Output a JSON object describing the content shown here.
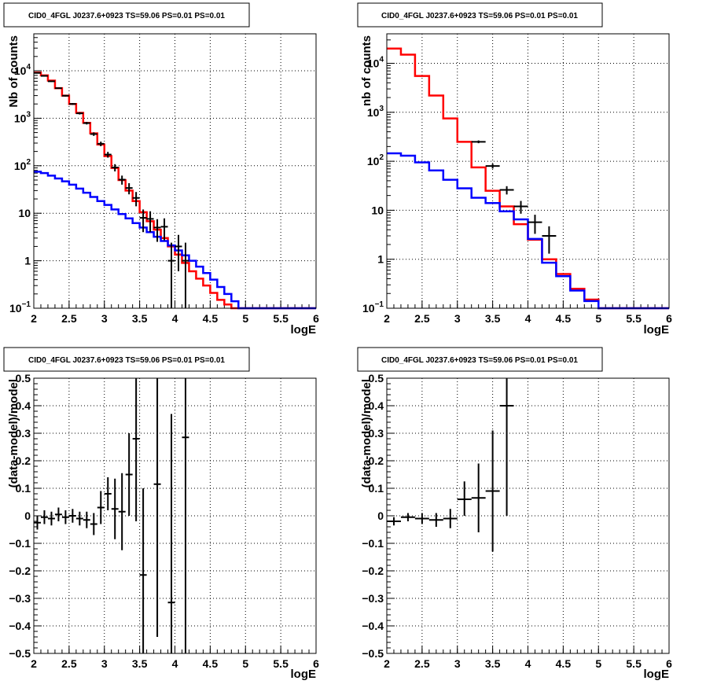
{
  "chart_data": [
    {
      "type": "line",
      "title": "CID0_4FGL J0237.6+0923 TS=59.06 PS=0.01 PS=0.01",
      "xlabel": "logE",
      "ylabel": "Nb of counts",
      "xlim": [
        2,
        6
      ],
      "ylim": [
        0.1,
        60000
      ],
      "yscale": "log",
      "grid": true,
      "xticks": [
        "2",
        "2.5",
        "3",
        "3.5",
        "4",
        "4.5",
        "5",
        "5.5",
        "6"
      ],
      "yticks": [
        {
          "v": 0.1,
          "mant": "10",
          "exp": "−1"
        },
        {
          "v": 1,
          "mant": "1",
          "exp": ""
        },
        {
          "v": 10,
          "mant": "10",
          "exp": ""
        },
        {
          "v": 100,
          "mant": "10",
          "exp": "2"
        },
        {
          "v": 1000,
          "mant": "10",
          "exp": "3"
        },
        {
          "v": 10000,
          "mant": "10",
          "exp": "4"
        }
      ],
      "bin_edges": [
        2.0,
        2.1,
        2.2,
        2.3,
        2.4,
        2.5,
        2.6,
        2.7,
        2.8,
        2.9,
        3.0,
        3.1,
        3.2,
        3.3,
        3.4,
        3.5,
        3.6,
        3.7,
        3.8,
        3.9,
        4.0,
        4.1,
        4.2,
        4.3,
        4.4,
        4.5,
        4.6,
        4.7,
        4.8,
        4.9,
        5.0,
        5.1,
        5.2,
        5.3,
        5.4,
        5.5,
        5.6,
        5.7,
        5.8,
        5.9,
        6.0
      ],
      "series": [
        {
          "color": "#ff0000",
          "values": [
            9200,
            8000,
            6200,
            4300,
            3000,
            2000,
            1300,
            800,
            480,
            280,
            160,
            90,
            50,
            30,
            18,
            10.5,
            6.8,
            4.5,
            3.0,
            2.0,
            1.35,
            0.9,
            0.6,
            0.42,
            0.3,
            0.21,
            0.15,
            0.12,
            0.1,
            0.1,
            0.1,
            0.1,
            0.1,
            0.1,
            0.1,
            0.1,
            0.1,
            0.1,
            0.1,
            0.1
          ]
        },
        {
          "color": "#0000ff",
          "values": [
            75,
            70,
            62,
            54,
            47,
            40,
            33,
            27,
            22,
            18,
            15,
            12,
            9.6,
            7.8,
            6.2,
            5.0,
            4.0,
            3.2,
            2.6,
            2.1,
            1.65,
            1.3,
            1.0,
            0.75,
            0.55,
            0.4,
            0.28,
            0.2,
            0.14,
            0.1,
            0.1,
            0.1,
            0.1,
            0.1,
            0.1,
            0.1,
            0.1,
            0.1,
            0.1,
            0.1
          ]
        }
      ],
      "points": [
        {
          "x": 2.05,
          "y": 9000,
          "ylo": 8800,
          "yhi": 9200
        },
        {
          "x": 2.15,
          "y": 7800,
          "ylo": 7600,
          "yhi": 8000
        },
        {
          "x": 2.25,
          "y": 6000,
          "ylo": 5850,
          "yhi": 6150
        },
        {
          "x": 2.35,
          "y": 4300,
          "ylo": 4170,
          "yhi": 4430
        },
        {
          "x": 2.45,
          "y": 2980,
          "ylo": 2870,
          "yhi": 3090
        },
        {
          "x": 2.55,
          "y": 2000,
          "ylo": 1910,
          "yhi": 2090
        },
        {
          "x": 2.65,
          "y": 1270,
          "ylo": 1200,
          "yhi": 1340
        },
        {
          "x": 2.75,
          "y": 790,
          "ylo": 740,
          "yhi": 840
        },
        {
          "x": 2.85,
          "y": 465,
          "ylo": 425,
          "yhi": 505
        },
        {
          "x": 2.95,
          "y": 290,
          "ylo": 258,
          "yhi": 322
        },
        {
          "x": 3.05,
          "y": 172,
          "ylo": 148,
          "yhi": 196
        },
        {
          "x": 3.15,
          "y": 92,
          "ylo": 76,
          "yhi": 108
        },
        {
          "x": 3.25,
          "y": 51,
          "ylo": 40,
          "yhi": 62
        },
        {
          "x": 3.35,
          "y": 34,
          "ylo": 25,
          "yhi": 43
        },
        {
          "x": 3.45,
          "y": 21,
          "ylo": 14,
          "yhi": 28
        },
        {
          "x": 3.55,
          "y": 8,
          "ylo": 4,
          "yhi": 12
        },
        {
          "x": 3.65,
          "y": 7.6,
          "ylo": 4,
          "yhi": 11
        },
        {
          "x": 3.75,
          "y": 5,
          "ylo": 2.5,
          "yhi": 7.5
        },
        {
          "x": 3.85,
          "y": 5.2,
          "ylo": 2.7,
          "yhi": 7.8
        },
        {
          "x": 3.95,
          "y": 1,
          "ylo": 0.1,
          "yhi": 2.4
        },
        {
          "x": 4.05,
          "y": 2,
          "ylo": 0.6,
          "yhi": 3.5
        },
        {
          "x": 4.15,
          "y": 1,
          "ylo": 0.1,
          "yhi": 2.4
        }
      ],
      "point_halfwidth": 0.05
    },
    {
      "type": "line",
      "title": "CID0_4FGL J0237.6+0923 TS=59.06 PS=0.01 PS=0.01",
      "xlabel": "logE",
      "ylabel": "nb of counts",
      "xlim": [
        2,
        6
      ],
      "ylim": [
        0.1,
        40000
      ],
      "yscale": "log",
      "grid": true,
      "xticks": [
        "2",
        "2.5",
        "3",
        "3.5",
        "4",
        "4.5",
        "5",
        "5.5",
        "6"
      ],
      "yticks": [
        {
          "v": 0.1,
          "mant": "10",
          "exp": "−1"
        },
        {
          "v": 1,
          "mant": "1",
          "exp": ""
        },
        {
          "v": 10,
          "mant": "10",
          "exp": ""
        },
        {
          "v": 100,
          "mant": "10",
          "exp": "2"
        },
        {
          "v": 1000,
          "mant": "10",
          "exp": "3"
        },
        {
          "v": 10000,
          "mant": "10",
          "exp": "4"
        }
      ],
      "bin_edges": [
        2.0,
        2.2,
        2.4,
        2.6,
        2.8,
        3.0,
        3.2,
        3.4,
        3.6,
        3.8,
        4.0,
        4.2,
        4.4,
        4.6,
        4.8,
        5.0,
        5.2,
        5.4,
        5.6,
        5.8,
        6.0
      ],
      "series": [
        {
          "color": "#ff0000",
          "values": [
            20000,
            15000,
            5500,
            2200,
            750,
            250,
            75,
            25,
            12,
            5.2,
            2.5,
            1.0,
            0.5,
            0.25,
            0.15,
            0.1,
            0.1,
            0.1,
            0.1,
            0.1
          ]
        },
        {
          "color": "#0000ff",
          "values": [
            145,
            130,
            95,
            65,
            42,
            28,
            18,
            14,
            9.5,
            6.5,
            2.6,
            0.85,
            0.45,
            0.23,
            0.14,
            0.1,
            0.1,
            0.1,
            0.1,
            0.1
          ]
        }
      ],
      "points": [
        {
          "x": 3.3,
          "y": 250,
          "ylo": 234,
          "yhi": 266
        },
        {
          "x": 3.5,
          "y": 80,
          "ylo": 71,
          "yhi": 89
        },
        {
          "x": 3.7,
          "y": 26,
          "ylo": 21,
          "yhi": 31
        },
        {
          "x": 3.9,
          "y": 12,
          "ylo": 8.5,
          "yhi": 15.5
        },
        {
          "x": 4.1,
          "y": 5.7,
          "ylo": 3.3,
          "yhi": 8.1
        },
        {
          "x": 4.3,
          "y": 3.0,
          "ylo": 1.3,
          "yhi": 4.7
        }
      ],
      "point_halfwidth": 0.1
    },
    {
      "type": "scatter",
      "title": "CID0_4FGL J0237.6+0923 TS=59.06 PS=0.01 PS=0.01",
      "xlabel": "logE",
      "ylabel": "(data-model)/model",
      "xlim": [
        2,
        6
      ],
      "ylim": [
        -0.5,
        0.5
      ],
      "yscale": "linear",
      "grid": true,
      "xticks": [
        "2",
        "2.5",
        "3",
        "3.5",
        "4",
        "4.5",
        "5",
        "5.5",
        "6"
      ],
      "yticks_linear": [
        "−0.5",
        "−0.4",
        "−0.3",
        "−0.2",
        "−0.1",
        "0",
        "0.1",
        "0.2",
        "0.3",
        "0.4",
        "0.5"
      ],
      "points": [
        {
          "x": 2.05,
          "y": -0.025,
          "ylo": -0.05,
          "yhi": 0.0
        },
        {
          "x": 2.15,
          "y": -0.005,
          "ylo": -0.03,
          "yhi": 0.02
        },
        {
          "x": 2.25,
          "y": -0.01,
          "ylo": -0.035,
          "yhi": 0.015
        },
        {
          "x": 2.35,
          "y": 0.005,
          "ylo": -0.02,
          "yhi": 0.03
        },
        {
          "x": 2.45,
          "y": -0.005,
          "ylo": -0.03,
          "yhi": 0.02
        },
        {
          "x": 2.55,
          "y": 0.0,
          "ylo": -0.025,
          "yhi": 0.025
        },
        {
          "x": 2.65,
          "y": -0.01,
          "ylo": -0.035,
          "yhi": 0.015
        },
        {
          "x": 2.75,
          "y": -0.015,
          "ylo": -0.045,
          "yhi": 0.015
        },
        {
          "x": 2.85,
          "y": -0.03,
          "ylo": -0.07,
          "yhi": 0.01
        },
        {
          "x": 2.95,
          "y": 0.03,
          "ylo": -0.03,
          "yhi": 0.09
        },
        {
          "x": 3.05,
          "y": 0.08,
          "ylo": 0.02,
          "yhi": 0.14
        },
        {
          "x": 3.15,
          "y": 0.025,
          "ylo": -0.085,
          "yhi": 0.135
        },
        {
          "x": 3.25,
          "y": 0.015,
          "ylo": -0.125,
          "yhi": 0.155
        },
        {
          "x": 3.35,
          "y": 0.15,
          "ylo": 0.0,
          "yhi": 0.3
        },
        {
          "x": 3.45,
          "y": 0.28,
          "ylo": -0.02,
          "yhi": 0.5
        },
        {
          "x": 3.55,
          "y": -0.215,
          "ylo": -0.5,
          "yhi": 0.1
        },
        {
          "x": 3.75,
          "y": 0.115,
          "ylo": -0.44,
          "yhi": 0.5
        },
        {
          "x": 3.95,
          "y": -0.315,
          "ylo": -0.5,
          "yhi": 0.37
        },
        {
          "x": 4.15,
          "y": 0.285,
          "ylo": -0.5,
          "yhi": 0.5
        }
      ],
      "point_halfwidth": 0.05
    },
    {
      "type": "scatter",
      "title": "CID0_4FGL J0237.6+0923 TS=59.06 PS=0.01 PS=0.01",
      "xlabel": "logE",
      "ylabel": "(data-model)/model",
      "xlim": [
        2,
        6
      ],
      "ylim": [
        -0.5,
        0.5
      ],
      "yscale": "linear",
      "grid": true,
      "xticks": [
        "2",
        "2.5",
        "3",
        "3.5",
        "4",
        "4.5",
        "5",
        "5.5",
        "6"
      ],
      "yticks_linear": [
        "−0.5",
        "−0.4",
        "−0.3",
        "−0.2",
        "−0.1",
        "0",
        "0.1",
        "0.2",
        "0.3",
        "0.4",
        "0.5"
      ],
      "points": [
        {
          "x": 2.1,
          "y": -0.02,
          "ylo": -0.035,
          "yhi": -0.005
        },
        {
          "x": 2.3,
          "y": -0.005,
          "ylo": -0.02,
          "yhi": 0.01
        },
        {
          "x": 2.5,
          "y": -0.01,
          "ylo": -0.03,
          "yhi": 0.01
        },
        {
          "x": 2.7,
          "y": -0.015,
          "ylo": -0.04,
          "yhi": 0.01
        },
        {
          "x": 2.9,
          "y": -0.01,
          "ylo": -0.045,
          "yhi": 0.025
        },
        {
          "x": 3.1,
          "y": 0.06,
          "ylo": 0.0,
          "yhi": 0.125
        },
        {
          "x": 3.3,
          "y": 0.065,
          "ylo": -0.06,
          "yhi": 0.19
        },
        {
          "x": 3.5,
          "y": 0.09,
          "ylo": -0.13,
          "yhi": 0.31
        },
        {
          "x": 3.7,
          "y": 0.4,
          "ylo": 0.0,
          "yhi": 0.5
        }
      ],
      "point_halfwidth": 0.1
    }
  ]
}
